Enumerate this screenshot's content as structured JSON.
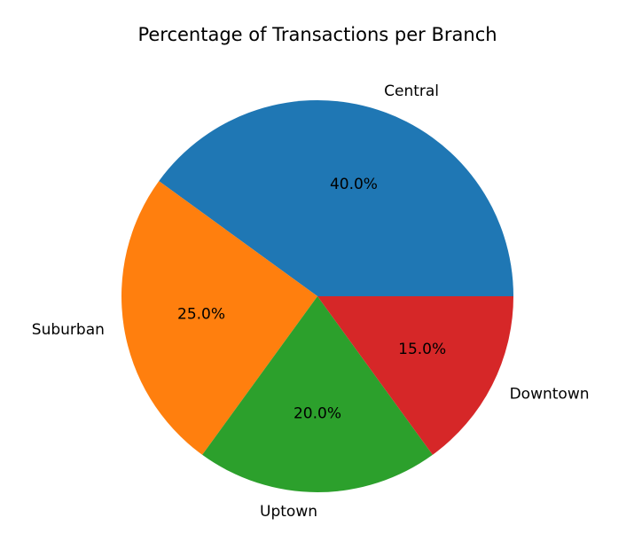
{
  "chart_data": {
    "type": "pie",
    "title": "Percentage of Transactions per Branch",
    "categories": [
      "Central",
      "Suburban",
      "Uptown",
      "Downtown"
    ],
    "values": [
      40.0,
      25.0,
      20.0,
      15.0
    ],
    "percent_labels": [
      "40.0%",
      "25.0%",
      "20.0%",
      "15.0%"
    ],
    "colors": [
      "#1f77b4",
      "#ff7f0e",
      "#2ca02c",
      "#d62728"
    ],
    "start_angle_deg": 0,
    "direction": "counterclockwise",
    "legend": "none"
  }
}
